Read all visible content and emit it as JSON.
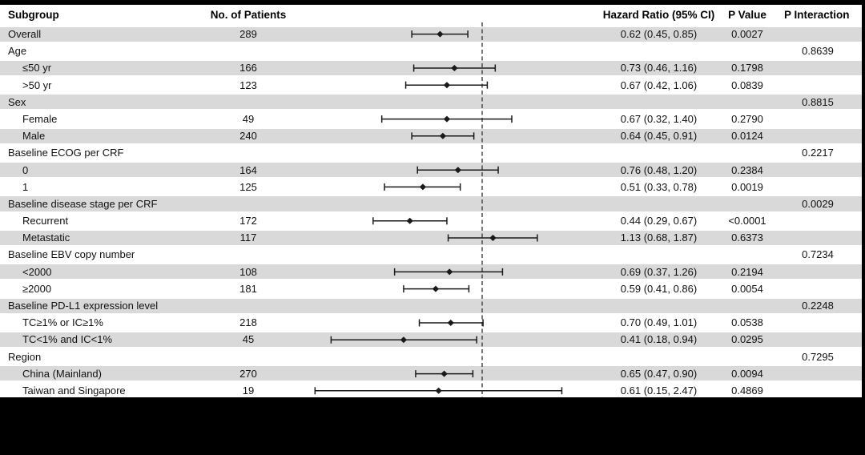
{
  "figure": {
    "columns": {
      "subgroup": "Subgroup",
      "patients": "No. of Patients",
      "hazard_ratio": "Hazard Ratio (95% CI)",
      "p_value": "P Value",
      "p_interaction": "P Interaction"
    },
    "colors": {
      "stripe": "#d9d9d9",
      "background": "#ffffff",
      "frame": "#000000",
      "line": "#1a1a1a",
      "reference_line": "#404040"
    }
  },
  "chart_data": {
    "type": "forest",
    "x_scale": "log",
    "reference_line_hr": 1.0,
    "x_axis_labels_visible": false,
    "legend": "none",
    "rows": [
      {
        "label": "Overall",
        "indent": false,
        "n": "289",
        "hr": 0.62,
        "lo": 0.45,
        "hi": 0.85,
        "hr_text": "0.62 (0.45, 0.85)",
        "p": "0.0027",
        "p_int": ""
      },
      {
        "label": "Age",
        "indent": false,
        "n": "",
        "hr": null,
        "lo": null,
        "hi": null,
        "hr_text": "",
        "p": "",
        "p_int": "0.8639"
      },
      {
        "label": "≤50 yr",
        "indent": true,
        "n": "166",
        "hr": 0.73,
        "lo": 0.46,
        "hi": 1.16,
        "hr_text": "0.73 (0.46, 1.16)",
        "p": "0.1798",
        "p_int": ""
      },
      {
        "label": ">50 yr",
        "indent": true,
        "n": "123",
        "hr": 0.67,
        "lo": 0.42,
        "hi": 1.06,
        "hr_text": "0.67 (0.42, 1.06)",
        "p": "0.0839",
        "p_int": ""
      },
      {
        "label": "Sex",
        "indent": false,
        "n": "",
        "hr": null,
        "lo": null,
        "hi": null,
        "hr_text": "",
        "p": "",
        "p_int": "0.8815"
      },
      {
        "label": "Female",
        "indent": true,
        "n": "49",
        "hr": 0.67,
        "lo": 0.32,
        "hi": 1.4,
        "hr_text": "0.67 (0.32, 1.40)",
        "p": "0.2790",
        "p_int": ""
      },
      {
        "label": "Male",
        "indent": true,
        "n": "240",
        "hr": 0.64,
        "lo": 0.45,
        "hi": 0.91,
        "hr_text": "0.64 (0.45, 0.91)",
        "p": "0.0124",
        "p_int": ""
      },
      {
        "label": "Baseline ECOG per CRF",
        "indent": false,
        "n": "",
        "hr": null,
        "lo": null,
        "hi": null,
        "hr_text": "",
        "p": "",
        "p_int": "0.2217"
      },
      {
        "label": "0",
        "indent": true,
        "n": "164",
        "hr": 0.76,
        "lo": 0.48,
        "hi": 1.2,
        "hr_text": "0.76 (0.48, 1.20)",
        "p": "0.2384",
        "p_int": ""
      },
      {
        "label": "1",
        "indent": true,
        "n": "125",
        "hr": 0.51,
        "lo": 0.33,
        "hi": 0.78,
        "hr_text": "0.51 (0.33, 0.78)",
        "p": "0.0019",
        "p_int": ""
      },
      {
        "label": "Baseline disease stage per CRF",
        "indent": false,
        "n": "",
        "hr": null,
        "lo": null,
        "hi": null,
        "hr_text": "",
        "p": "",
        "p_int": "0.0029"
      },
      {
        "label": "Recurrent",
        "indent": true,
        "n": "172",
        "hr": 0.44,
        "lo": 0.29,
        "hi": 0.67,
        "hr_text": "0.44 (0.29, 0.67)",
        "p": "<0.0001",
        "p_int": ""
      },
      {
        "label": "Metastatic",
        "indent": true,
        "n": "117",
        "hr": 1.13,
        "lo": 0.68,
        "hi": 1.87,
        "hr_text": "1.13 (0.68, 1.87)",
        "p": "0.6373",
        "p_int": ""
      },
      {
        "label": "Baseline EBV copy number",
        "indent": false,
        "n": "",
        "hr": null,
        "lo": null,
        "hi": null,
        "hr_text": "",
        "p": "",
        "p_int": "0.7234"
      },
      {
        "label": "<2000",
        "indent": true,
        "n": "108",
        "hr": 0.69,
        "lo": 0.37,
        "hi": 1.26,
        "hr_text": "0.69 (0.37, 1.26)",
        "p": "0.2194",
        "p_int": ""
      },
      {
        "label": "≥2000",
        "indent": true,
        "n": "181",
        "hr": 0.59,
        "lo": 0.41,
        "hi": 0.86,
        "hr_text": "0.59 (0.41, 0.86)",
        "p": "0.0054",
        "p_int": ""
      },
      {
        "label": "Baseline PD-L1 expression level",
        "indent": false,
        "n": "",
        "hr": null,
        "lo": null,
        "hi": null,
        "hr_text": "",
        "p": "",
        "p_int": "0.2248"
      },
      {
        "label": "TC≥1% or IC≥1%",
        "indent": true,
        "n": "218",
        "hr": 0.7,
        "lo": 0.49,
        "hi": 1.01,
        "hr_text": "0.70 (0.49, 1.01)",
        "p": "0.0538",
        "p_int": ""
      },
      {
        "label": "TC<1% and IC<1%",
        "indent": true,
        "n": "45",
        "hr": 0.41,
        "lo": 0.18,
        "hi": 0.94,
        "hr_text": "0.41 (0.18, 0.94)",
        "p": "0.0295",
        "p_int": ""
      },
      {
        "label": "Region",
        "indent": false,
        "n": "",
        "hr": null,
        "lo": null,
        "hi": null,
        "hr_text": "",
        "p": "",
        "p_int": "0.7295"
      },
      {
        "label": "China (Mainland)",
        "indent": true,
        "n": "270",
        "hr": 0.65,
        "lo": 0.47,
        "hi": 0.9,
        "hr_text": "0.65 (0.47, 0.90)",
        "p": "0.0094",
        "p_int": ""
      },
      {
        "label": "Taiwan and Singapore",
        "indent": true,
        "n": "19",
        "hr": 0.61,
        "lo": 0.15,
        "hi": 2.47,
        "hr_text": "0.61 (0.15, 2.47)",
        "p": "0.4869",
        "p_int": ""
      }
    ]
  }
}
